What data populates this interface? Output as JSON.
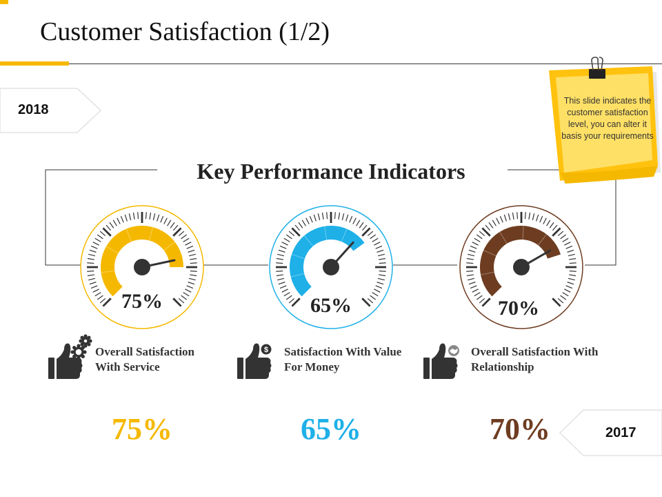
{
  "title": "Customer Satisfaction (1/2)",
  "year_left": "2018",
  "year_right": "2017",
  "note": "This slide indicates the customer satisfaction level, you can alter it basis your requirements",
  "kpi_heading": "Key Performance Indicators",
  "colors": {
    "accent": "#f5b800",
    "blue": "#1fb0e8",
    "brown": "#6e3d21",
    "dark": "#333333"
  },
  "gauges": [
    {
      "value_label": "75%",
      "value": 0.75,
      "color": "#f5b800",
      "label_line1": "Overall Satisfaction",
      "label_line2": "With Service",
      "icon": "thumbs-up-gears-icon",
      "big_value": "75%"
    },
    {
      "value_label": "65%",
      "value": 0.65,
      "color": "#1fb0e8",
      "label_line1": "Satisfaction With Value",
      "label_line2": "For Money",
      "icon": "thumbs-up-dollar-icon",
      "big_value": "65%"
    },
    {
      "value_label": "70%",
      "value": 0.7,
      "color": "#6e3d21",
      "label_line1": "Overall Satisfaction With",
      "label_line2": "Relationship",
      "icon": "thumbs-up-handshake-icon",
      "big_value": "70%"
    }
  ]
}
